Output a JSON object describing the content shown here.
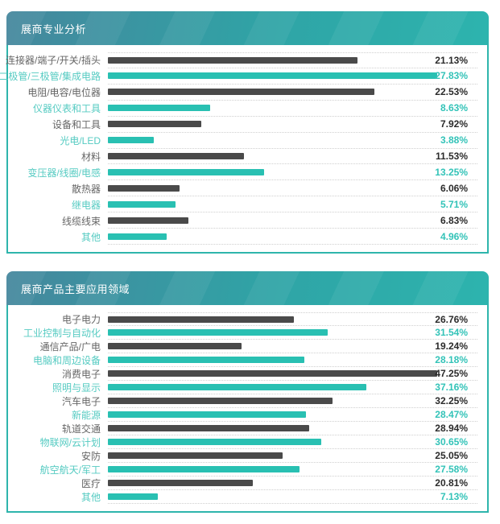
{
  "colors": {
    "accent_border": "#2eb5ac",
    "header_gradient_start": "#45879d",
    "header_gradient_end": "#2db4ae",
    "bar_dark": "#4a4a4a",
    "bar_teal": "#29c0b2",
    "label_dark": "#666666",
    "label_teal": "#55cbc2",
    "value_dark": "#2b2b2b",
    "value_teal": "#33c3b8",
    "separator": "#cfcfcf"
  },
  "chart_data": [
    {
      "type": "bar",
      "orientation": "horizontal",
      "title": "展商专业分析",
      "xlim": [
        0,
        27.83
      ],
      "grid": "dotted-row-separators",
      "legend": "none",
      "categories": [
        "连接器/端子/开关/插头",
        "二极管/三极管/集成电路",
        "电阻/电容/电位器",
        "仪器仪表和工具",
        "设备和工具",
        "光电/LED",
        "材料",
        "变压器/线圈/电感",
        "散热器",
        "继电器",
        "线缆线束",
        "其他"
      ],
      "values": [
        21.13,
        27.83,
        22.53,
        8.63,
        7.92,
        3.88,
        11.53,
        13.25,
        6.06,
        5.71,
        6.83,
        4.96
      ],
      "value_labels": [
        "21.13%",
        "27.83%",
        "22.53%",
        "8.63%",
        "7.92%",
        "3.88%",
        "11.53%",
        "13.25%",
        "6.06%",
        "5.71%",
        "6.83%",
        "4.96%"
      ],
      "bar_colors": [
        "dark",
        "teal",
        "dark",
        "teal",
        "dark",
        "teal",
        "dark",
        "teal",
        "dark",
        "teal",
        "dark",
        "teal"
      ]
    },
    {
      "type": "bar",
      "orientation": "horizontal",
      "title": "展商产品主要应用领域",
      "xlim": [
        0,
        47.25
      ],
      "grid": "dotted-row-separators",
      "legend": "none",
      "categories": [
        "电子电力",
        "工业控制与自动化",
        "通信产品/广电",
        "电脑和周边设备",
        "消费电子",
        "照明与显示",
        "汽车电子",
        "新能源",
        "轨道交通",
        "物联网/云计划",
        "安防",
        "航空航天/军工",
        "医疗",
        "其他"
      ],
      "values": [
        26.76,
        31.54,
        19.24,
        28.18,
        47.25,
        37.16,
        32.25,
        28.47,
        28.94,
        30.65,
        25.05,
        27.58,
        20.81,
        7.13
      ],
      "value_labels": [
        "26.76%",
        "31.54%",
        "19.24%",
        "28.18%",
        "47.25%",
        "37.16%",
        "32.25%",
        "28.47%",
        "28.94%",
        "30.65%",
        "25.05%",
        "27.58%",
        "20.81%",
        "7.13%"
      ],
      "bar_colors": [
        "dark",
        "teal",
        "dark",
        "teal",
        "dark",
        "teal",
        "dark",
        "teal",
        "dark",
        "teal",
        "dark",
        "teal",
        "dark",
        "teal"
      ]
    }
  ]
}
